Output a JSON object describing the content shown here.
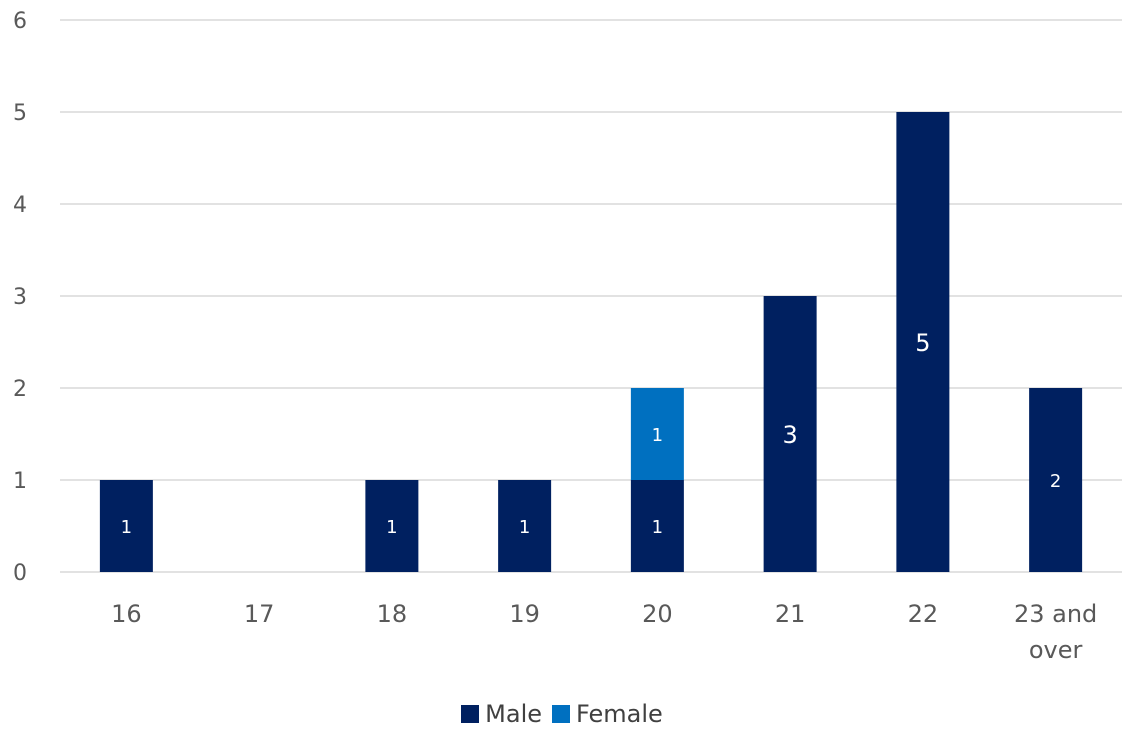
{
  "chart_data": {
    "type": "bar",
    "stacked": true,
    "categories": [
      "16",
      "17",
      "18",
      "19",
      "20",
      "21",
      "22",
      "23 and over"
    ],
    "series": [
      {
        "name": "Male",
        "color": "#002060",
        "values": [
          1,
          0,
          1,
          1,
          1,
          3,
          5,
          2
        ]
      },
      {
        "name": "Female",
        "color": "#0070C0",
        "values": [
          0,
          0,
          0,
          0,
          1,
          0,
          0,
          0
        ]
      }
    ],
    "data_labels": {
      "Male": [
        "1",
        "",
        "1",
        "1",
        "1",
        "3",
        "5",
        "2"
      ],
      "Female": [
        "",
        "",
        "",
        "",
        "1",
        "",
        "",
        ""
      ]
    },
    "ylim": [
      0,
      6
    ],
    "yticks": [
      0,
      1,
      2,
      3,
      4,
      5,
      6
    ],
    "grid": true,
    "legend_position": "bottom",
    "title": "",
    "xlabel": "",
    "ylabel": ""
  },
  "colors": {
    "male": "#002060",
    "female": "#0070C0",
    "grid": "#d9d9d9",
    "tick_text": "#595959"
  }
}
